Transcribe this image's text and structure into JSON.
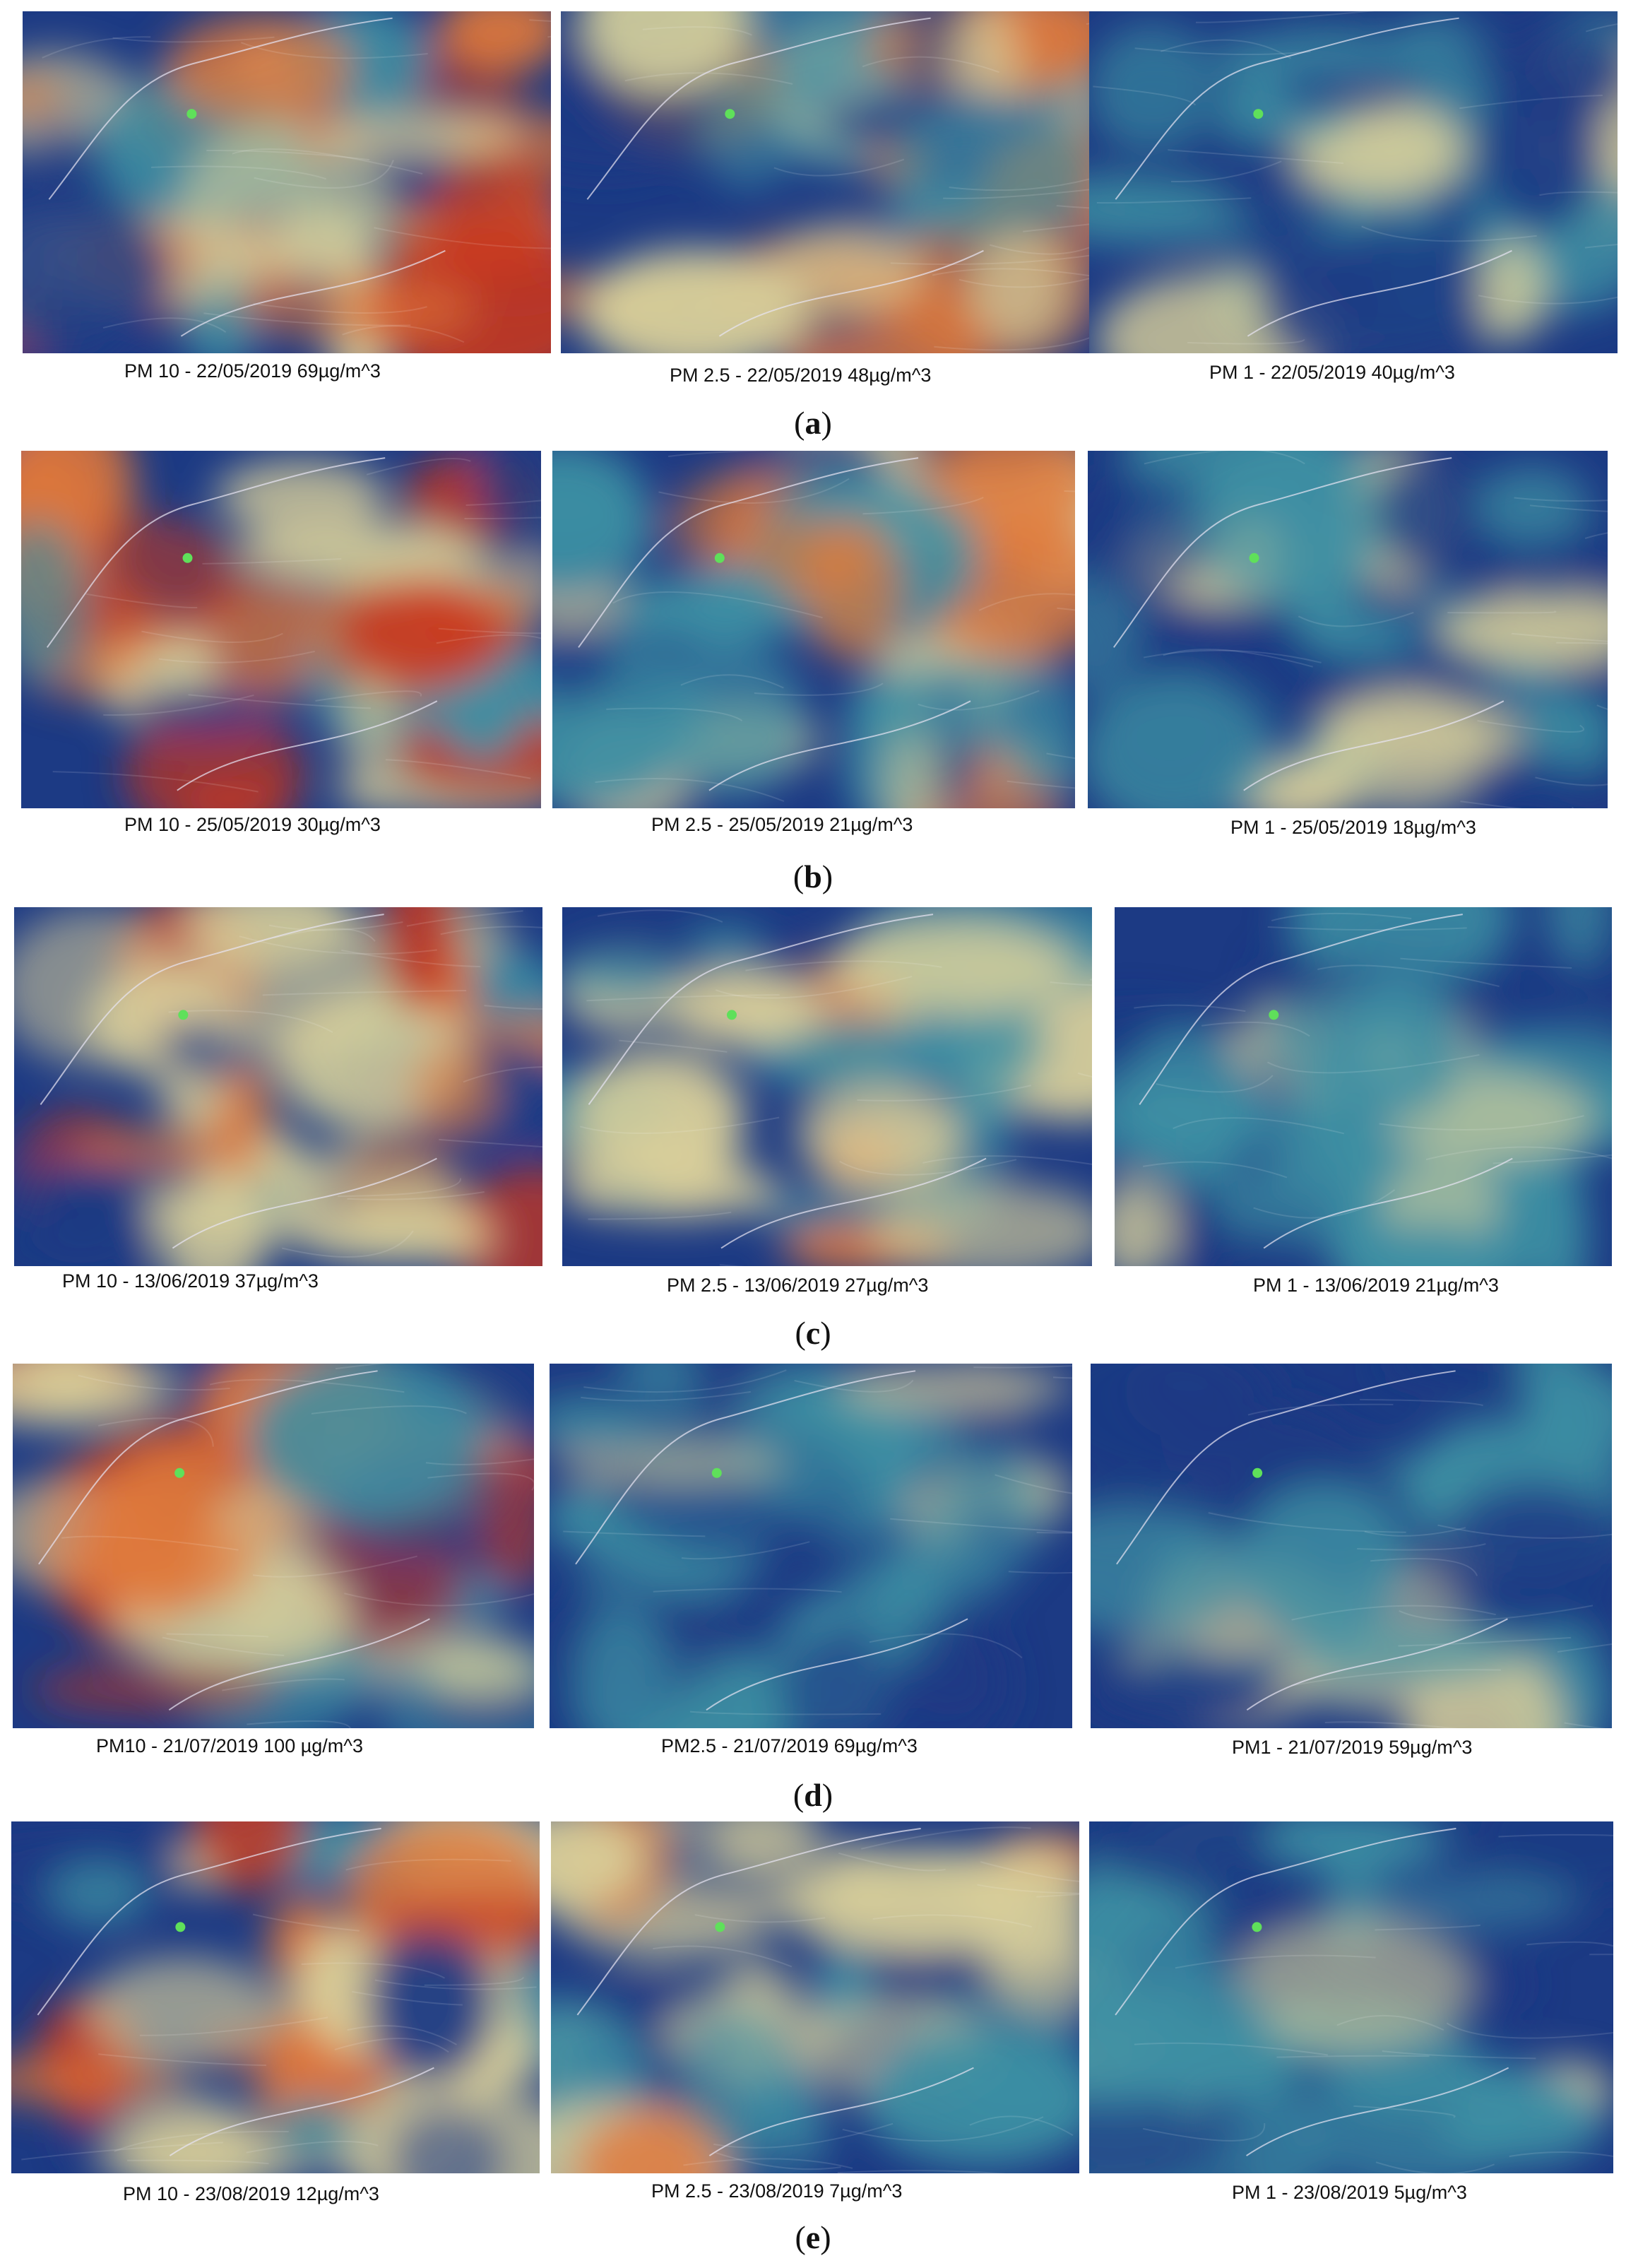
{
  "rows": [
    {
      "label": "a",
      "panels": [
        {
          "caption": "PM 10 - 22/05/2019  69µg/m^3",
          "palette": "hot"
        },
        {
          "caption": "PM 2.5 - 22/05/2019 48µg/m^3",
          "palette": "warm"
        },
        {
          "caption": "PM 1 - 22/05/2019 40µg/m^3",
          "palette": "cool"
        }
      ]
    },
    {
      "label": "b",
      "panels": [
        {
          "caption": "PM 10 - 25/05/2019 30µg/m^3",
          "palette": "hot"
        },
        {
          "caption": "PM 2.5 - 25/05/2019 21µg/m^3",
          "palette": "warm"
        },
        {
          "caption": "PM 1 - 25/05/2019 18µg/m^3",
          "palette": "cool"
        }
      ]
    },
    {
      "label": "c",
      "panels": [
        {
          "caption": "PM 10 - 13/06/2019 37µg/m^3",
          "palette": "hot"
        },
        {
          "caption": "PM 2.5 - 13/06/2019 27µg/m^3",
          "palette": "warm"
        },
        {
          "caption": "PM 1 - 13/06/2019 21µg/m^3",
          "palette": "cool"
        }
      ]
    },
    {
      "label": "d",
      "panels": [
        {
          "caption": "PM10 - 21/07/2019 100 µg/m^3",
          "palette": "hot"
        },
        {
          "caption": "PM2.5 - 21/07/2019 69µg/m^3",
          "palette": "cool"
        },
        {
          "caption": "PM1 - 21/07/2019 59µg/m^3",
          "palette": "cool"
        }
      ]
    },
    {
      "label": "e",
      "panels": [
        {
          "caption": "PM 10 - 23/08/2019 12µg/m^3",
          "palette": "hot"
        },
        {
          "caption": "PM 2.5 - 23/08/2019 7µg/m^3",
          "palette": "warm"
        },
        {
          "caption": "PM 1 - 23/08/2019 5µg/m^3",
          "palette": "cool"
        }
      ]
    }
  ],
  "colors": {
    "deep_blue": "#1c3a84",
    "teal": "#3d8fa3",
    "sand": "#d9cf9a",
    "orange": "#e0783a",
    "red": "#c8361e",
    "coast_line": "#e8e6f4",
    "station_marker": "#5fe05a"
  }
}
